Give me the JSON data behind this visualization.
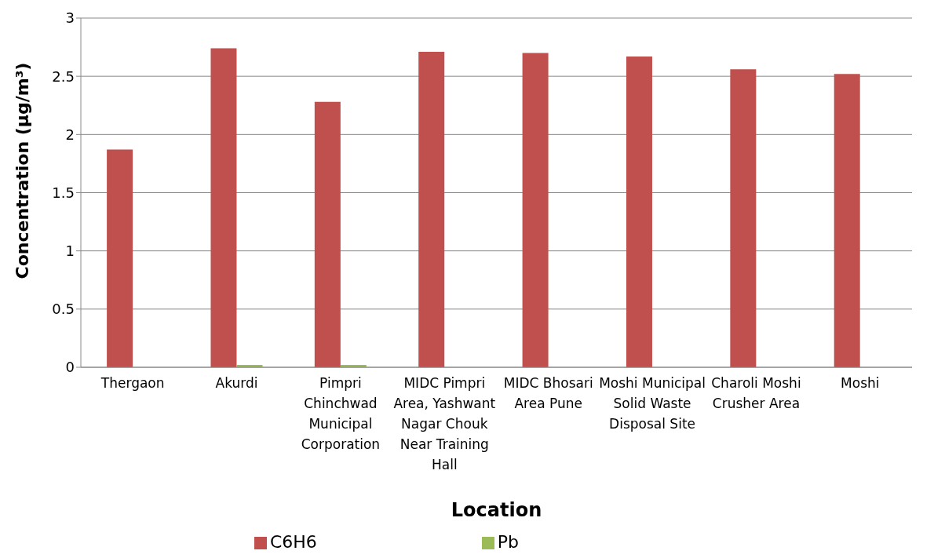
{
  "chart_data": {
    "type": "bar",
    "xlabel": "Location",
    "ylabel": "Concentration (µg/m³)",
    "categories": [
      "Thergaon",
      "Akurdi",
      "Pimpri Chinchwad Municipal Corporation",
      "MIDC Pimpri Area, Yashwant Nagar Chouk Near Training Hall",
      "MIDC Bhosari Area Pune",
      "Moshi Municipal Solid Waste Disposal Site",
      "Charoli Moshi Crusher Area",
      "Moshi"
    ],
    "series": [
      {
        "name": "C6H6",
        "color": "#c0504d",
        "values": [
          1.87,
          2.74,
          2.28,
          2.71,
          2.7,
          2.67,
          2.56,
          2.52
        ]
      },
      {
        "name": "Pb",
        "color": "#9bbb59",
        "values": [
          null,
          0.02,
          0.02,
          null,
          null,
          null,
          null,
          null
        ]
      }
    ],
    "ylim": [
      0,
      3
    ],
    "yticks": [
      0,
      0.5,
      1,
      1.5,
      2,
      2.5,
      3
    ],
    "grid": "y",
    "legend": "bottom"
  }
}
